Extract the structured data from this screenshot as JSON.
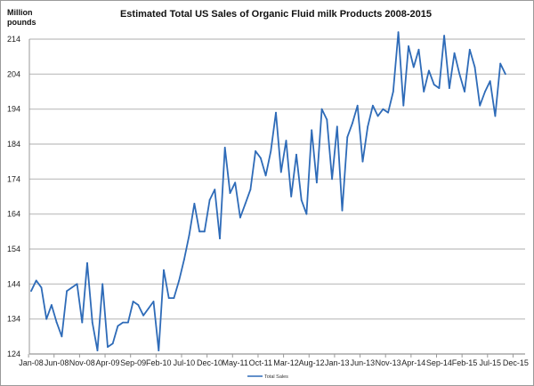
{
  "chart_data": {
    "type": "line",
    "title": "Estimated Total US Sales of Organic Fluid milk Products 2008-2015",
    "ylabel_line1": "Million",
    "ylabel_line2": "pounds",
    "xlabel": "",
    "ylim": [
      124,
      214
    ],
    "yticks": [
      124,
      134,
      144,
      154,
      164,
      174,
      184,
      194,
      204,
      214
    ],
    "x_start": "Jan-08",
    "x_end": "Dec-15",
    "xtick_labels": [
      "Jan-08",
      "Jun-08",
      "Nov-08",
      "Apr-09",
      "Sep-09",
      "Feb-10",
      "Jul-10",
      "Dec-10",
      "May-11",
      "Oct-11",
      "Mar-12",
      "Aug-12",
      "Jan-13",
      "Jun-13",
      "Nov-13",
      "Apr-14",
      "Sep-14",
      "Feb-15",
      "Jul-15",
      "Dec-15"
    ],
    "grid": "horizontal",
    "legend_position": "bottom",
    "series": [
      {
        "name": "Total Sales",
        "color": "#2e6bb8",
        "first_month": "Jan-08",
        "last_month": "Oct-15",
        "values": [
          142,
          145,
          143,
          134,
          138,
          133,
          129,
          142,
          143,
          144,
          133,
          150,
          133,
          125,
          144,
          126,
          127,
          132,
          133,
          133,
          139,
          138,
          135,
          137,
          139,
          125,
          148,
          140,
          140,
          145,
          151,
          158,
          167,
          159,
          159,
          168,
          171,
          157,
          183,
          170,
          173,
          163,
          167,
          171,
          182,
          180,
          175,
          182,
          193,
          176,
          185,
          169,
          181,
          168,
          164,
          188,
          173,
          194,
          191,
          174,
          189,
          165,
          186,
          190,
          195,
          179,
          189,
          195,
          192,
          194,
          193,
          199,
          216,
          195,
          212,
          206,
          211,
          199,
          205,
          201,
          200,
          215,
          200,
          210,
          204,
          199,
          211,
          206,
          195,
          199,
          202,
          192,
          207,
          204
        ]
      }
    ]
  }
}
